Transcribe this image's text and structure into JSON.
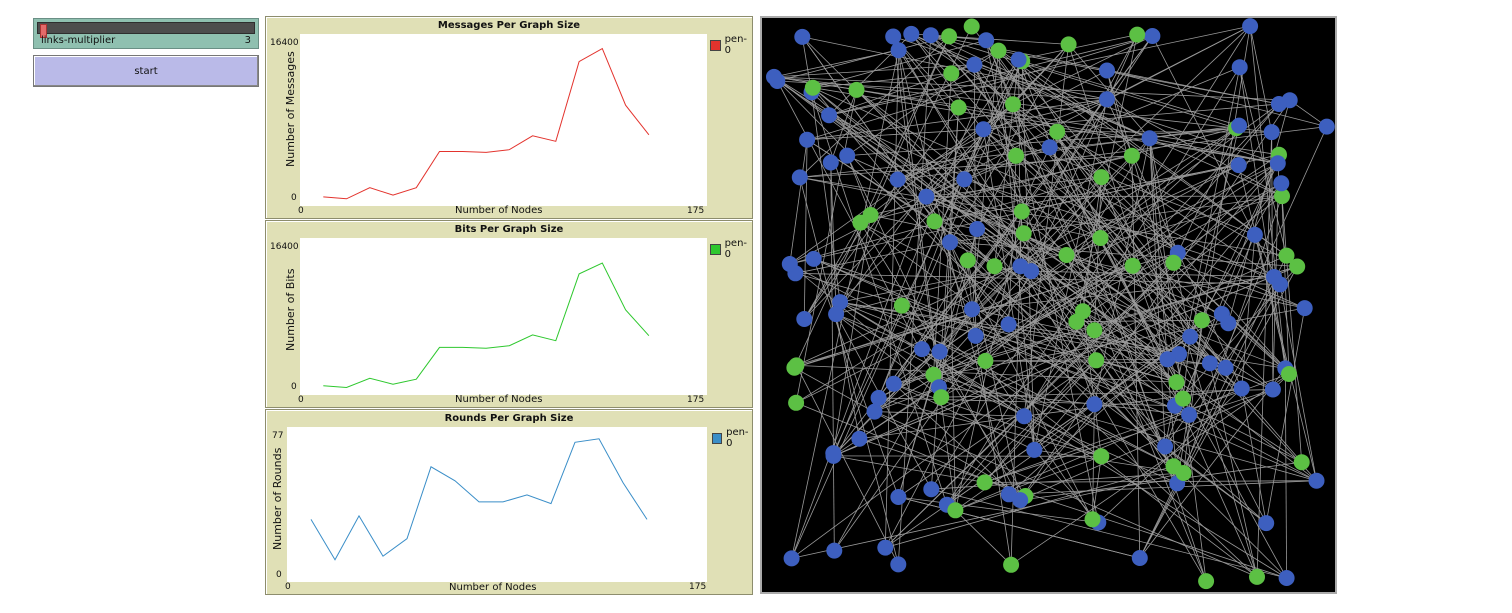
{
  "slider": {
    "label": "links-multiplier",
    "value": "3",
    "level_fraction": 0.0
  },
  "start_button": {
    "label": "start"
  },
  "plots": [
    {
      "title": "Messages Per Graph Size",
      "xlabel": "Number of Nodes",
      "ylabel": "Number of Messages",
      "xmin": "0",
      "xmax": "175",
      "ymin": "0",
      "ymax": "16400",
      "legend": "pen-0",
      "color": "#e3332d",
      "chart_data": {
        "type": "line",
        "x": [
          10,
          20,
          30,
          40,
          50,
          60,
          70,
          80,
          90,
          100,
          110,
          120,
          130,
          140,
          150
        ],
        "y": [
          -100,
          -300,
          900,
          100,
          900,
          4800,
          4800,
          4700,
          5000,
          6500,
          5900,
          14500,
          15900,
          9800,
          6600
        ],
        "xlim": [
          0,
          175
        ],
        "ylim": [
          0,
          16400
        ]
      }
    },
    {
      "title": "Bits Per Graph Size",
      "xlabel": "Number of Nodes",
      "ylabel": "Number of Bits",
      "xmin": "0",
      "xmax": "175",
      "ymin": "0",
      "ymax": "16400",
      "legend": "pen-0",
      "color": "#2ec82e",
      "chart_data": {
        "type": "line",
        "x": [
          10,
          20,
          30,
          40,
          50,
          60,
          70,
          80,
          90,
          100,
          110,
          120,
          130,
          140,
          150
        ],
        "y": [
          -100,
          -300,
          800,
          100,
          700,
          4500,
          4500,
          4400,
          4700,
          6000,
          5300,
          13300,
          14600,
          9000,
          5900
        ],
        "xlim": [
          0,
          175
        ],
        "ylim": [
          0,
          16400
        ]
      }
    },
    {
      "title": "Rounds Per Graph Size",
      "xlabel": "Number of Nodes",
      "ylabel": "Number of Rounds",
      "xmin": "0",
      "xmax": "175",
      "ymin": "0",
      "ymax": "77",
      "legend": "pen-0",
      "color": "#3a8ec8",
      "chart_data": {
        "type": "line",
        "x": [
          10,
          20,
          30,
          40,
          50,
          60,
          70,
          80,
          90,
          100,
          110,
          120,
          130,
          140,
          150
        ],
        "y": [
          30,
          7,
          32,
          9,
          19,
          60,
          52,
          40,
          40,
          44,
          39,
          74,
          76,
          51,
          30
        ],
        "xlim": [
          0,
          175
        ],
        "ylim": [
          0,
          77
        ]
      }
    }
  ],
  "network": {
    "background": "#000000",
    "link_color": "#9a9a9a",
    "node_colors": [
      "#3d5fbf",
      "#5cc044"
    ],
    "node_count": 150
  }
}
